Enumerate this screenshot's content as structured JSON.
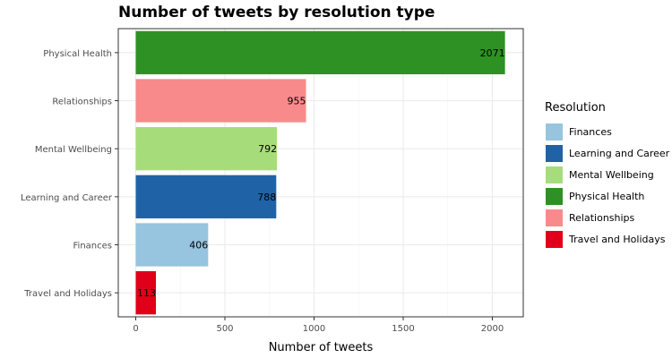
{
  "chart_data": {
    "type": "bar",
    "orientation": "horizontal",
    "title": "Number of tweets by resolution type",
    "xlabel": "Number of tweets",
    "ylabel": "",
    "xlim": [
      0,
      2175
    ],
    "x_ticks": [
      0,
      500,
      1000,
      1500,
      2000
    ],
    "grid": true,
    "legend_position": "right",
    "legend_title": "Resolution",
    "categories": [
      "Physical Health",
      "Relationships",
      "Mental Wellbeing",
      "Learning and Career",
      "Finances",
      "Travel and Holidays"
    ],
    "values": [
      2071,
      955,
      792,
      788,
      406,
      113
    ],
    "colors": [
      "#2e9124",
      "#f88a8b",
      "#a7dc7a",
      "#1f63a6",
      "#97c4df",
      "#e0001a"
    ],
    "legend": [
      {
        "label": "Finances",
        "color": "#97c4df"
      },
      {
        "label": "Learning and Career",
        "color": "#1f63a6"
      },
      {
        "label": "Mental Wellbeing",
        "color": "#a7dc7a"
      },
      {
        "label": "Physical Health",
        "color": "#2e9124"
      },
      {
        "label": "Relationships",
        "color": "#f88a8b"
      },
      {
        "label": "Travel and Holidays",
        "color": "#e0001a"
      }
    ]
  }
}
